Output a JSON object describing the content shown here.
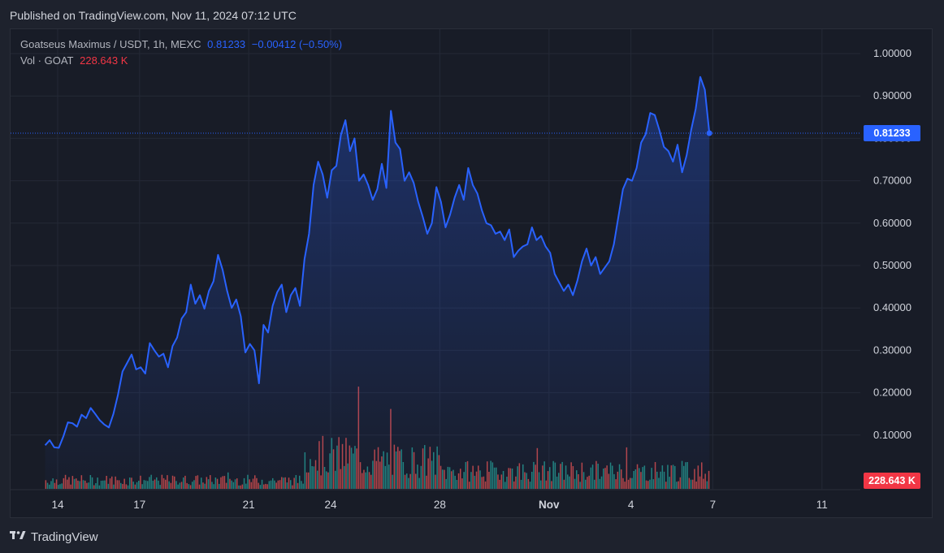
{
  "header": {
    "published": "Published on TradingView.com, Nov 11, 2024 07:12 UTC"
  },
  "legend": {
    "symbol": "Goatseus Maximus / USDT, 1h, MEXC",
    "price": "0.81233",
    "change": "−0.00412 (−0.50%)",
    "vol_label": "Vol · GOAT",
    "vol_value": "228.643 K"
  },
  "tags": {
    "price": "0.81233",
    "volume": "228.643 K"
  },
  "footer": {
    "brand": "TradingView",
    "logo_icon": "tradingview-logo-icon"
  },
  "colors": {
    "line": "#2962ff",
    "vol_up": "#26a69a",
    "vol_down": "#ef5350",
    "price_tag": "#2962ff",
    "vol_tag": "#f23645"
  },
  "chart_data": {
    "type": "area",
    "series": [
      {
        "name": "Goatseus Maximus / USDT",
        "color": "#2962ff"
      }
    ],
    "x_ticks": [
      "14",
      "17",
      "21",
      "24",
      "28",
      "Nov",
      "4",
      "7",
      "11"
    ],
    "y_ticks": [
      "1.00000",
      "0.90000",
      "0.80000",
      "0.70000",
      "0.60000",
      "0.50000",
      "0.40000",
      "0.30000",
      "0.20000",
      "0.10000"
    ],
    "ylim": [
      0,
      1.05
    ],
    "grid": true,
    "last_price": 0.81233,
    "price_points": [
      [
        "Oct 13 13:00",
        0.076
      ],
      [
        "Oct 13 17:00",
        0.088
      ],
      [
        "Oct 13 21:00",
        0.071
      ],
      [
        "Oct 14 01:00",
        0.07
      ],
      [
        "Oct 14 05:00",
        0.097
      ],
      [
        "Oct 14 09:00",
        0.13
      ],
      [
        "Oct 14 13:00",
        0.128
      ],
      [
        "Oct 14 17:00",
        0.12
      ],
      [
        "Oct 14 21:00",
        0.148
      ],
      [
        "Oct 15 01:00",
        0.14
      ],
      [
        "Oct 15 05:00",
        0.164
      ],
      [
        "Oct 15 09:00",
        0.15
      ],
      [
        "Oct 15 13:00",
        0.135
      ],
      [
        "Oct 15 17:00",
        0.125
      ],
      [
        "Oct 15 21:00",
        0.118
      ],
      [
        "Oct 16 01:00",
        0.15
      ],
      [
        "Oct 16 05:00",
        0.195
      ],
      [
        "Oct 16 09:00",
        0.25
      ],
      [
        "Oct 16 13:00",
        0.27
      ],
      [
        "Oct 16 17:00",
        0.29
      ],
      [
        "Oct 16 21:00",
        0.255
      ],
      [
        "Oct 17 01:00",
        0.26
      ],
      [
        "Oct 17 05:00",
        0.245
      ],
      [
        "Oct 17 09:00",
        0.317
      ],
      [
        "Oct 17 13:00",
        0.3
      ],
      [
        "Oct 17 17:00",
        0.285
      ],
      [
        "Oct 17 21:00",
        0.292
      ],
      [
        "Oct 18 01:00",
        0.26
      ],
      [
        "Oct 18 05:00",
        0.31
      ],
      [
        "Oct 18 09:00",
        0.33
      ],
      [
        "Oct 18 13:00",
        0.375
      ],
      [
        "Oct 18 17:00",
        0.39
      ],
      [
        "Oct 18 21:00",
        0.455
      ],
      [
        "Oct 19 01:00",
        0.41
      ],
      [
        "Oct 19 05:00",
        0.43
      ],
      [
        "Oct 19 09:00",
        0.398
      ],
      [
        "Oct 19 13:00",
        0.44
      ],
      [
        "Oct 19 17:00",
        0.463
      ],
      [
        "Oct 19 21:00",
        0.525
      ],
      [
        "Oct 20 01:00",
        0.49
      ],
      [
        "Oct 20 05:00",
        0.44
      ],
      [
        "Oct 20 09:00",
        0.4
      ],
      [
        "Oct 20 13:00",
        0.42
      ],
      [
        "Oct 20 17:00",
        0.38
      ],
      [
        "Oct 20 21:00",
        0.295
      ],
      [
        "Oct 21 01:00",
        0.315
      ],
      [
        "Oct 21 05:00",
        0.3
      ],
      [
        "Oct 21 09:00",
        0.222
      ],
      [
        "Oct 21 13:00",
        0.36
      ],
      [
        "Oct 21 17:00",
        0.342
      ],
      [
        "Oct 21 21:00",
        0.405
      ],
      [
        "Oct 22 01:00",
        0.437
      ],
      [
        "Oct 22 05:00",
        0.455
      ],
      [
        "Oct 22 09:00",
        0.39
      ],
      [
        "Oct 22 13:00",
        0.43
      ],
      [
        "Oct 22 17:00",
        0.447
      ],
      [
        "Oct 22 21:00",
        0.405
      ],
      [
        "Oct 23 01:00",
        0.515
      ],
      [
        "Oct 23 05:00",
        0.575
      ],
      [
        "Oct 23 09:00",
        0.69
      ],
      [
        "Oct 23 13:00",
        0.745
      ],
      [
        "Oct 23 17:00",
        0.715
      ],
      [
        "Oct 23 21:00",
        0.66
      ],
      [
        "Oct 24 01:00",
        0.725
      ],
      [
        "Oct 24 05:00",
        0.735
      ],
      [
        "Oct 24 09:00",
        0.808
      ],
      [
        "Oct 24 13:00",
        0.843
      ],
      [
        "Oct 24 17:00",
        0.77
      ],
      [
        "Oct 24 21:00",
        0.8
      ],
      [
        "Oct 25 01:00",
        0.7
      ],
      [
        "Oct 25 05:00",
        0.715
      ],
      [
        "Oct 25 09:00",
        0.69
      ],
      [
        "Oct 25 13:00",
        0.655
      ],
      [
        "Oct 25 17:00",
        0.68
      ],
      [
        "Oct 25 21:00",
        0.74
      ],
      [
        "Oct 26 01:00",
        0.683
      ],
      [
        "Oct 26 05:00",
        0.865
      ],
      [
        "Oct 26 09:00",
        0.79
      ],
      [
        "Oct 26 13:00",
        0.775
      ],
      [
        "Oct 26 17:00",
        0.7
      ],
      [
        "Oct 26 21:00",
        0.72
      ],
      [
        "Oct 27 01:00",
        0.695
      ],
      [
        "Oct 27 05:00",
        0.65
      ],
      [
        "Oct 27 09:00",
        0.615
      ],
      [
        "Oct 27 13:00",
        0.575
      ],
      [
        "Oct 27 17:00",
        0.6
      ],
      [
        "Oct 27 21:00",
        0.685
      ],
      [
        "Oct 28 01:00",
        0.65
      ],
      [
        "Oct 28 05:00",
        0.59
      ],
      [
        "Oct 28 09:00",
        0.62
      ],
      [
        "Oct 28 13:00",
        0.66
      ],
      [
        "Oct 28 17:00",
        0.69
      ],
      [
        "Oct 28 21:00",
        0.655
      ],
      [
        "Oct 29 01:00",
        0.73
      ],
      [
        "Oct 29 05:00",
        0.69
      ],
      [
        "Oct 29 09:00",
        0.67
      ],
      [
        "Oct 29 13:00",
        0.63
      ],
      [
        "Oct 29 17:00",
        0.6
      ],
      [
        "Oct 29 21:00",
        0.595
      ],
      [
        "Oct 30 01:00",
        0.575
      ],
      [
        "Oct 30 05:00",
        0.58
      ],
      [
        "Oct 30 09:00",
        0.56
      ],
      [
        "Oct 30 13:00",
        0.585
      ],
      [
        "Oct 30 17:00",
        0.52
      ],
      [
        "Oct 30 21:00",
        0.535
      ],
      [
        "Oct 31 01:00",
        0.545
      ],
      [
        "Oct 31 05:00",
        0.55
      ],
      [
        "Oct 31 09:00",
        0.59
      ],
      [
        "Oct 31 13:00",
        0.56
      ],
      [
        "Oct 31 17:00",
        0.57
      ],
      [
        "Oct 31 21:00",
        0.545
      ],
      [
        "Nov 1 01:00",
        0.53
      ],
      [
        "Nov 1 05:00",
        0.48
      ],
      [
        "Nov 1 09:00",
        0.46
      ],
      [
        "Nov 1 13:00",
        0.44
      ],
      [
        "Nov 1 17:00",
        0.455
      ],
      [
        "Nov 1 21:00",
        0.43
      ],
      [
        "Nov 2 01:00",
        0.465
      ],
      [
        "Nov 2 05:00",
        0.51
      ],
      [
        "Nov 2 09:00",
        0.54
      ],
      [
        "Nov 2 13:00",
        0.5
      ],
      [
        "Nov 2 17:00",
        0.52
      ],
      [
        "Nov 2 21:00",
        0.48
      ],
      [
        "Nov 3 01:00",
        0.495
      ],
      [
        "Nov 3 05:00",
        0.51
      ],
      [
        "Nov 3 09:00",
        0.55
      ],
      [
        "Nov 3 13:00",
        0.615
      ],
      [
        "Nov 3 17:00",
        0.68
      ],
      [
        "Nov 3 21:00",
        0.705
      ],
      [
        "Nov 4 01:00",
        0.7
      ],
      [
        "Nov 4 05:00",
        0.73
      ],
      [
        "Nov 4 09:00",
        0.79
      ],
      [
        "Nov 4 13:00",
        0.81
      ],
      [
        "Nov 4 17:00",
        0.86
      ],
      [
        "Nov 4 21:00",
        0.855
      ],
      [
        "Nov 5 01:00",
        0.82
      ],
      [
        "Nov 5 05:00",
        0.78
      ],
      [
        "Nov 5 09:00",
        0.77
      ],
      [
        "Nov 5 13:00",
        0.745
      ],
      [
        "Nov 5 17:00",
        0.785
      ],
      [
        "Nov 5 21:00",
        0.72
      ],
      [
        "Nov 6 01:00",
        0.76
      ],
      [
        "Nov 6 05:00",
        0.82
      ],
      [
        "Nov 6 09:00",
        0.87
      ],
      [
        "Nov 6 13:00",
        0.945
      ],
      [
        "Nov 6 17:00",
        0.915
      ],
      [
        "Nov 6 21:00",
        0.812
      ]
    ],
    "volume_label": "Vol · GOAT",
    "last_volume": "228.643 K"
  }
}
